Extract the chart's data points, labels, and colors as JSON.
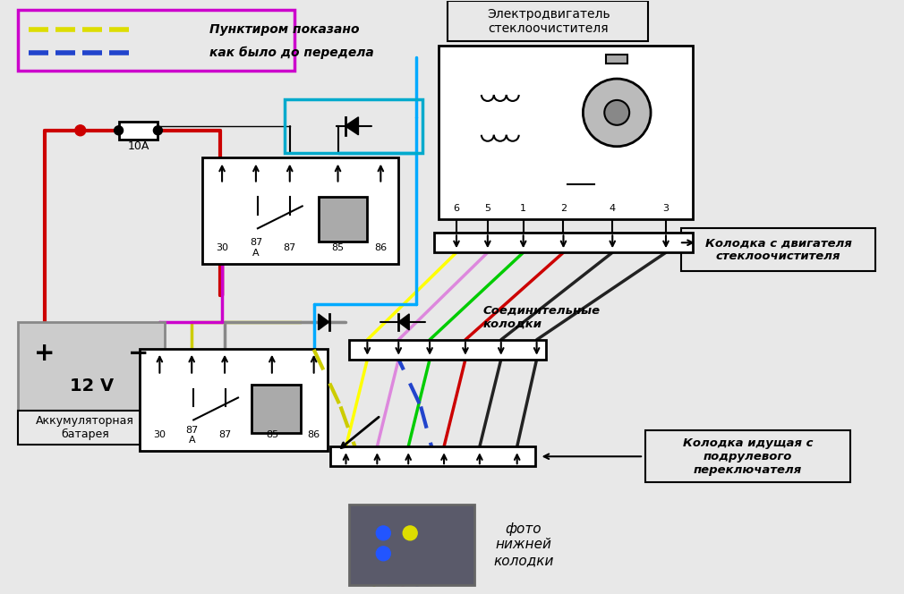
{
  "bg_color": "#e8e8e8",
  "legend_text1": "Пунктиром показано",
  "legend_text2": "как было до передела",
  "motor_label": "Электродвигатель\nстеклоочистителя",
  "conn1_label": "Колодка с двигателя\nстеклоочистителя",
  "conn2_label": "Соединительные\nколодки",
  "conn3_label": "Колодка идущая с\nподрулевого\nпереключателя",
  "photo_label": "фото\nнижней\nколодки",
  "battery_label": "Аккумуляторная\nбатарея",
  "fuse_label": "10А",
  "relay_pins": [
    "30",
    "87\nА",
    "87",
    "85",
    "86"
  ],
  "motor_pins": [
    "6",
    "5",
    "1",
    "2",
    "4",
    "3"
  ]
}
